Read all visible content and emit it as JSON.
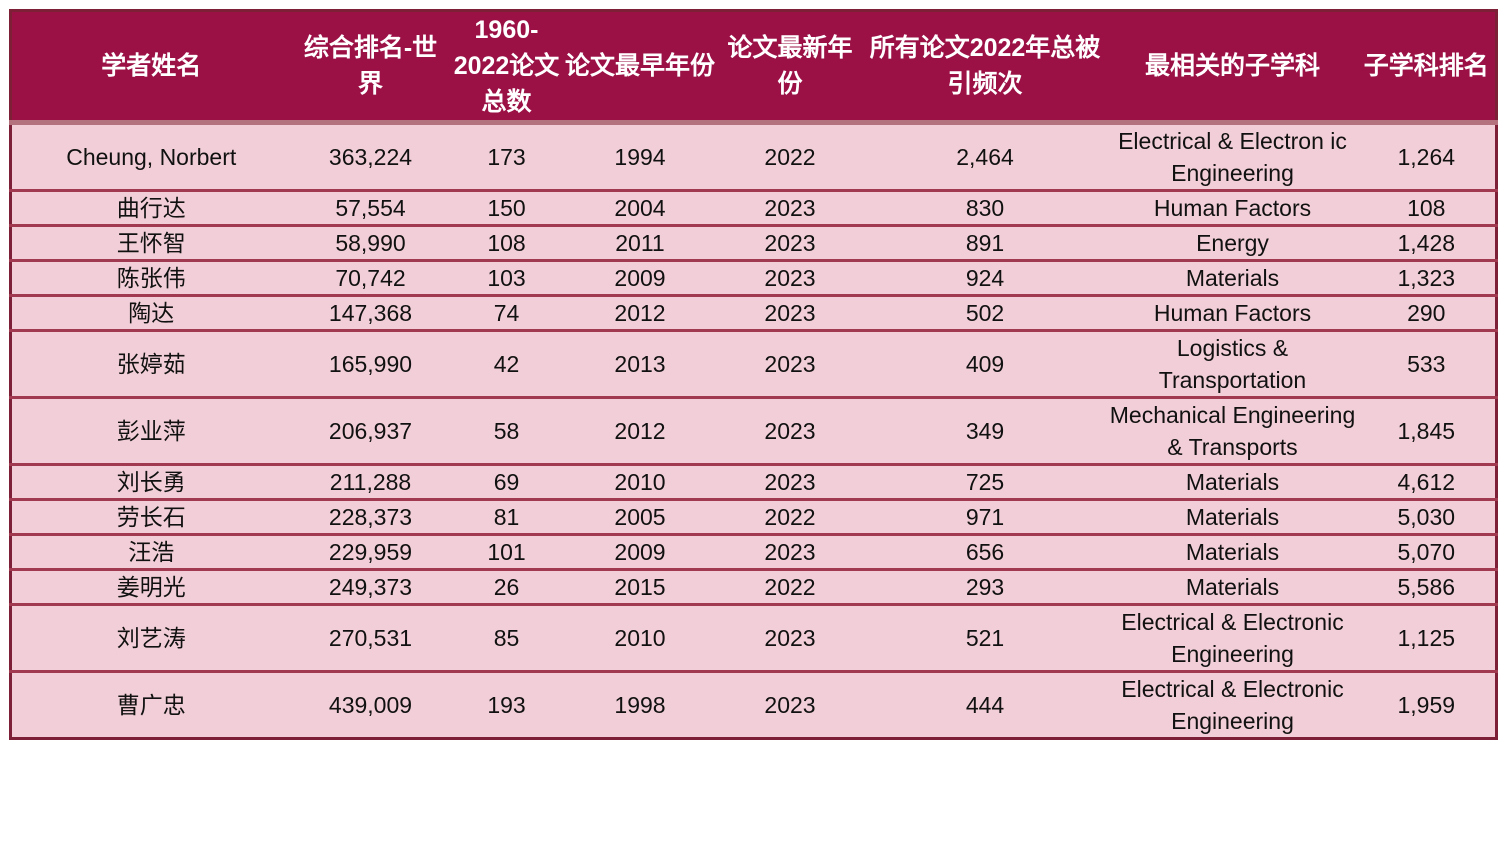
{
  "table": {
    "columns": [
      {
        "label": "学者姓名"
      },
      {
        "label": "综合排名-世界"
      },
      {
        "label": "1960-2022论文总数"
      },
      {
        "label": "论文最早年份"
      },
      {
        "label": "论文最新年份"
      },
      {
        "label": "所有论文2022年总被引频次"
      },
      {
        "label": "最相关的子学科"
      },
      {
        "label": "子学科排名"
      }
    ],
    "rows": [
      [
        "Cheung, Norbert",
        "363,224",
        "173",
        "1994",
        "2022",
        "2,464",
        "Electrical & Electron ic Engineering",
        "1,264"
      ],
      [
        "曲行达",
        "57,554",
        "150",
        "2004",
        "2023",
        "830",
        "Human Factors",
        "108"
      ],
      [
        "王怀智",
        "58,990",
        "108",
        "2011",
        "2023",
        "891",
        "Energy",
        "1,428"
      ],
      [
        "陈张伟",
        "70,742",
        "103",
        "2009",
        "2023",
        "924",
        "Materials",
        "1,323"
      ],
      [
        "陶达",
        "147,368",
        "74",
        "2012",
        "2023",
        "502",
        "Human Factors",
        "290"
      ],
      [
        "张婷茹",
        "165,990",
        "42",
        "2013",
        "2023",
        "409",
        "Logistics & Transportation",
        "533"
      ],
      [
        "彭业萍",
        "206,937",
        "58",
        "2012",
        "2023",
        "349",
        "Mechanical Engineering & Transports",
        "1,845"
      ],
      [
        "刘长勇",
        "211,288",
        "69",
        "2010",
        "2023",
        "725",
        "Materials",
        "4,612"
      ],
      [
        "劳长石",
        "228,373",
        "81",
        "2005",
        "2022",
        "971",
        "Materials",
        "5,030"
      ],
      [
        "汪浩",
        "229,959",
        "101",
        "2009",
        "2023",
        "656",
        "Materials",
        "5,070"
      ],
      [
        "姜明光",
        "249,373",
        "26",
        "2015",
        "2022",
        "293",
        "Materials",
        "5,586"
      ],
      [
        "刘艺涛",
        "270,531",
        "85",
        "2010",
        "2023",
        "521",
        "Electrical & Electronic Engineering",
        "1,125"
      ],
      [
        "曹广忠",
        "439,009",
        "193",
        "1998",
        "2023",
        "444",
        "Electrical & Electronic Engineering",
        "1,959"
      ]
    ]
  },
  "colors": {
    "header_bg": "#9b1146",
    "header_text": "#ffffff",
    "row_bg": "#f2cfd8",
    "row_separator": "#a13a50",
    "outer_border": "#7d1f37",
    "header_divider": "#b4717e",
    "body_text": "#111111"
  }
}
